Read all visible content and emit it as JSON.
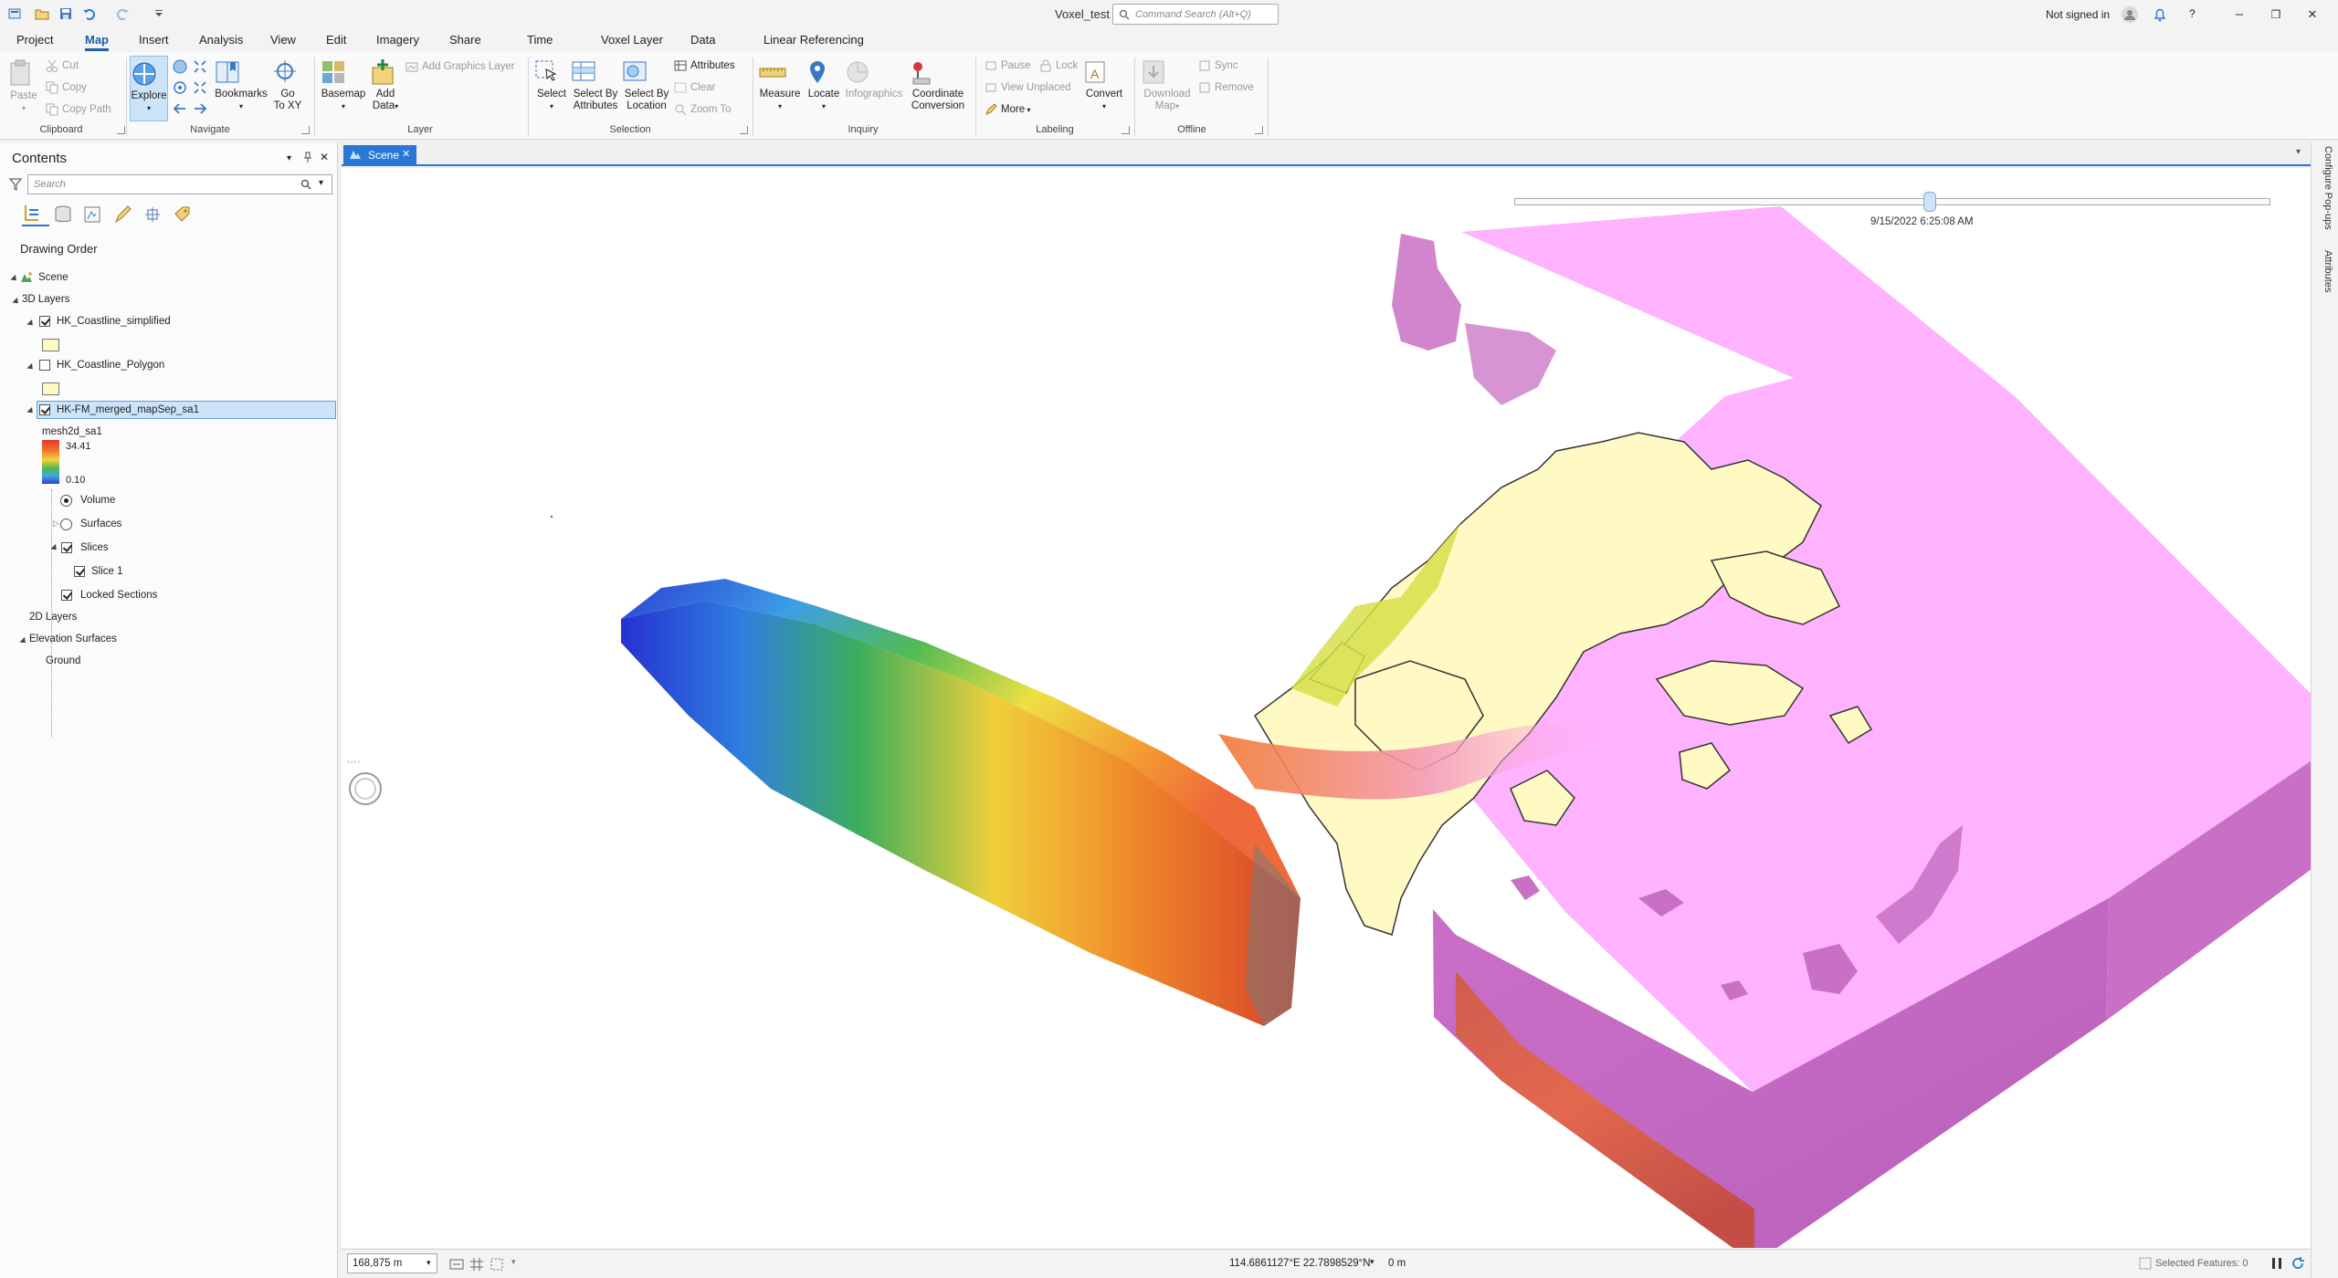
{
  "app": {
    "title": "Voxel_test",
    "command_search_placeholder": "Command Search (Alt+Q)",
    "signin": "Not signed in",
    "help": "?",
    "minimize": "–",
    "restore": "❐",
    "close": "✕"
  },
  "ribbon_tabs": [
    "Project",
    "Map",
    "Insert",
    "Analysis",
    "View",
    "Edit",
    "Imagery",
    "Share",
    "Time",
    "Voxel Layer",
    "Data",
    "Linear Referencing"
  ],
  "active_tab": "Map",
  "clipboard": {
    "paste": "Paste",
    "cut": "Cut",
    "copy": "Copy",
    "copy_path": "Copy Path",
    "label": "Clipboard"
  },
  "navigate": {
    "explore": "Explore",
    "bookmarks": "Bookmarks",
    "goto_line1": "Go",
    "goto_line2": "To XY",
    "label": "Navigate"
  },
  "layer": {
    "basemap": "Basemap",
    "add_data_line1": "Add",
    "add_data_line2": "Data",
    "add_graphics": "Add Graphics Layer",
    "label": "Layer"
  },
  "selection": {
    "select": "Select",
    "by_attr_line1": "Select By",
    "by_attr_line2": "Attributes",
    "by_loc_line1": "Select By",
    "by_loc_line2": "Location",
    "attributes": "Attributes",
    "clear": "Clear",
    "zoom_to": "Zoom To",
    "label": "Selection"
  },
  "inquiry": {
    "measure": "Measure",
    "locate": "Locate",
    "infographics": "Infographics",
    "coord_line1": "Coordinate",
    "coord_line2": "Conversion",
    "label": "Inquiry"
  },
  "labeling": {
    "pause": "Pause",
    "lock": "Lock",
    "view_unplaced": "View Unplaced",
    "more": "More",
    "convert": "Convert",
    "label": "Labeling"
  },
  "offline": {
    "download_line1": "Download",
    "download_line2": "Map",
    "sync": "Sync",
    "remove": "Remove",
    "label": "Offline"
  },
  "contents": {
    "title": "Contents",
    "search_placeholder": "Search",
    "drawing_order": "Drawing Order",
    "scene": "Scene",
    "layers_3d": "3D Layers",
    "coastline_simplified": "HK_Coastline_simplified",
    "coastline_polygon": "HK_Coastline_Polygon",
    "voxel_layer": "HK-FM_merged_mapSep_sa1",
    "variable": "mesh2d_sa1",
    "legend_max": "34.41",
    "legend_min": "0.10",
    "volume": "Volume",
    "surfaces": "Surfaces",
    "slices": "Slices",
    "slice1": "Slice 1",
    "locked_sections": "Locked Sections",
    "layers_2d": "2D Layers",
    "elevation_surfaces": "Elevation Surfaces",
    "ground": "Ground"
  },
  "map": {
    "tab_label": "Scene",
    "time_label": "9/15/2022 6:25:08 AM",
    "time_slider_position": 0.55
  },
  "status": {
    "scale": "168,875 m",
    "coords": "114.6861127°E 22.7898529°N",
    "elevation": "0 m",
    "selected_features": "Selected Features: 0"
  },
  "right_panels": [
    "Configure Pop-ups",
    "Attributes"
  ],
  "colors": {
    "accent": "#2a78d6",
    "land": "#fff9c4",
    "voxel_top": "#ffb3ff",
    "voxel_side": "#c66fc4"
  }
}
